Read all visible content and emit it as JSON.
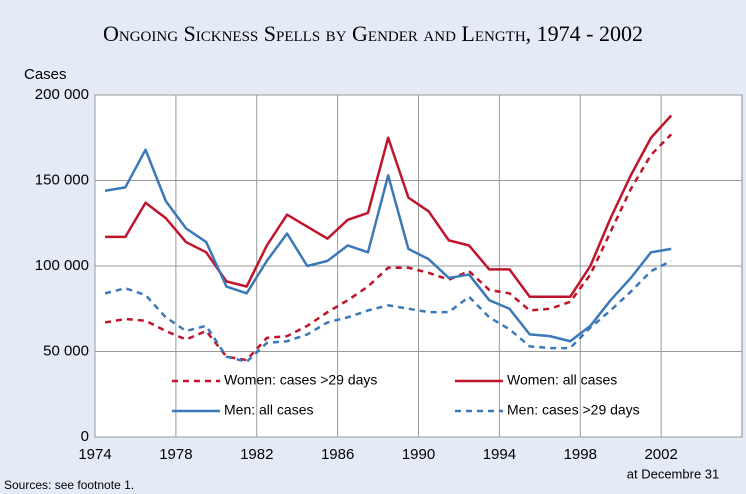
{
  "chart_data": {
    "type": "line",
    "title": "Ongoing Sickness Spells by Gender and Length, 1974 - 2002",
    "y_label": "Cases",
    "x_note": "at Decembre 31",
    "source": "Sources: see footnote 1.",
    "x": [
      1974.5,
      1975.5,
      1976.5,
      1977.5,
      1978.5,
      1979.5,
      1980.5,
      1981.5,
      1982.5,
      1983.5,
      1984.5,
      1985.5,
      1986.5,
      1987.5,
      1988.5,
      1989.5,
      1990.5,
      1991.5,
      1992.5,
      1993.5,
      1994.5,
      1995.5,
      1996.5,
      1997.5,
      1998.5,
      1999.5,
      2000.5,
      2001.5,
      2002.5
    ],
    "series": [
      {
        "name": "Women: cases >29 days",
        "color": "#c0142b",
        "dashed": true,
        "values": [
          67000,
          69000,
          68000,
          62000,
          57000,
          62000,
          47000,
          45000,
          58000,
          59000,
          65000,
          73000,
          80000,
          88000,
          99000,
          99000,
          96000,
          92000,
          97000,
          86000,
          84000,
          74000,
          75000,
          79000,
          95000,
          120000,
          145000,
          165000,
          177000
        ]
      },
      {
        "name": "Women: all cases",
        "color": "#c0142b",
        "dashed": false,
        "values": [
          117000,
          117000,
          137000,
          128000,
          114000,
          108000,
          91000,
          88000,
          112000,
          130000,
          123000,
          116000,
          127000,
          131000,
          175000,
          140000,
          132000,
          115000,
          112000,
          98000,
          98000,
          82000,
          82000,
          82000,
          100000,
          128000,
          153000,
          175000,
          188000
        ]
      },
      {
        "name": "Men: all cases",
        "color": "#3b78b8",
        "dashed": false,
        "values": [
          144000,
          146000,
          168000,
          138000,
          122000,
          114000,
          88000,
          84000,
          103000,
          119000,
          100000,
          103000,
          112000,
          108000,
          153000,
          110000,
          104000,
          93000,
          95000,
          80000,
          75000,
          60000,
          59000,
          56000,
          65000,
          80000,
          93000,
          108000,
          110000
        ]
      },
      {
        "name": "Men: cases >29 days",
        "color": "#3b78b8",
        "dashed": true,
        "values": [
          84000,
          87000,
          83000,
          70000,
          62000,
          65000,
          47000,
          44000,
          55000,
          56000,
          60000,
          67000,
          70000,
          74000,
          77000,
          75000,
          73000,
          73000,
          82000,
          70000,
          63000,
          53000,
          52000,
          52000,
          64000,
          74000,
          85000,
          97000,
          103000
        ]
      }
    ],
    "xlim": [
      1974,
      2006
    ],
    "xticks": [
      1974,
      1978,
      1982,
      1986,
      1990,
      1994,
      1998,
      2002
    ],
    "ylim": [
      0,
      200000
    ],
    "yticks": [
      0,
      {
        "value": 50000,
        "label": "50 000"
      },
      {
        "value": 100000,
        "label": "100 000"
      },
      {
        "value": 150000,
        "label": "150 000"
      },
      {
        "value": 200000,
        "label": "200 000"
      }
    ],
    "grid": true,
    "legend": "bottom"
  }
}
